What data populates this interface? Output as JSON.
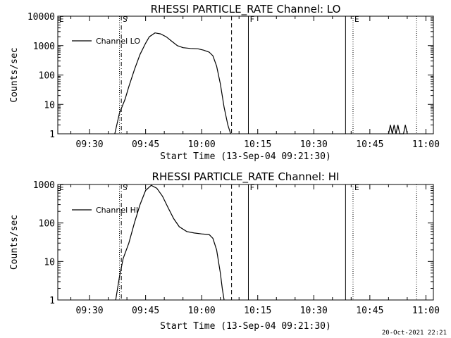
{
  "footer": {
    "timestamp": "20-Oct-2021 22:21"
  },
  "chart_data": [
    {
      "type": "line",
      "title": "RHESSI PARTICLE_RATE Channel: LO",
      "xlabel": "Start Time (13-Sep-04 09:21:30)",
      "ylabel": "Counts/sec",
      "y_scale": "log",
      "xlim": [
        "09:21:30",
        "11:02:00"
      ],
      "ylim": [
        1,
        10000
      ],
      "x_ticks": [
        "09:30",
        "09:45",
        "10:00",
        "10:15",
        "10:30",
        "10:45",
        "11:00"
      ],
      "y_ticks": [
        "1",
        "10",
        "100",
        "1000",
        "10000"
      ],
      "legend": {
        "position": "top-left",
        "entries": [
          "Channel LO"
        ]
      },
      "markers": [
        {
          "label": "E",
          "time": "09:21:30",
          "style": "dotted"
        },
        {
          "label": "",
          "time": "09:38:00",
          "style": "dotted"
        },
        {
          "label": "S",
          "time": "09:38:30",
          "style": "dashdot"
        },
        {
          "label": "",
          "time": "10:08:00",
          "style": "dashed"
        },
        {
          "label": "F",
          "time": "10:12:30",
          "style": "solid"
        },
        {
          "label": "",
          "time": "10:38:30",
          "style": "solid"
        },
        {
          "label": "E",
          "time": "10:40:30",
          "style": "dotted"
        },
        {
          "label": "",
          "time": "10:57:30",
          "style": "dotted"
        }
      ],
      "series": [
        {
          "name": "Channel LO",
          "segments": [
            [
              [
                "09:36:45",
                1
              ],
              [
                "09:38:00",
                5
              ],
              [
                "09:39:30",
                15
              ],
              [
                "09:40:30",
                40
              ],
              [
                "09:42:00",
                150
              ],
              [
                "09:43:30",
                500
              ],
              [
                "09:45:00",
                1200
              ],
              [
                "09:46:00",
                2000
              ],
              [
                "09:47:30",
                2700
              ],
              [
                "09:49:00",
                2500
              ],
              [
                "09:50:30",
                2000
              ],
              [
                "09:52:00",
                1400
              ],
              [
                "09:53:30",
                1000
              ],
              [
                "09:55:00",
                850
              ],
              [
                "09:57:00",
                800
              ],
              [
                "09:59:00",
                780
              ],
              [
                "10:00:30",
                700
              ],
              [
                "10:02:00",
                600
              ],
              [
                "10:03:00",
                450
              ],
              [
                "10:04:00",
                200
              ],
              [
                "10:05:00",
                50
              ],
              [
                "10:06:00",
                8
              ],
              [
                "10:07:00",
                2
              ],
              [
                "10:07:45",
                1
              ]
            ],
            [
              [
                "10:50:00",
                1
              ],
              [
                "10:50:30",
                2
              ],
              [
                "10:51:00",
                1
              ],
              [
                "10:51:30",
                2
              ],
              [
                "10:52:00",
                1
              ],
              [
                "10:52:30",
                2
              ],
              [
                "10:53:00",
                1
              ],
              [
                "10:54:00",
                1
              ],
              [
                "10:54:30",
                2
              ],
              [
                "10:55:00",
                1
              ]
            ]
          ]
        }
      ]
    },
    {
      "type": "line",
      "title": "RHESSI PARTICLE_RATE Channel: HI",
      "xlabel": "Start Time (13-Sep-04 09:21:30)",
      "ylabel": "Counts/sec",
      "y_scale": "log",
      "xlim": [
        "09:21:30",
        "11:02:00"
      ],
      "ylim": [
        1,
        1000
      ],
      "x_ticks": [
        "09:30",
        "09:45",
        "10:00",
        "10:15",
        "10:30",
        "10:45",
        "11:00"
      ],
      "y_ticks": [
        "1",
        "10",
        "100",
        "1000"
      ],
      "legend": {
        "position": "top-left",
        "entries": [
          "Channel HI"
        ]
      },
      "markers": [
        {
          "label": "E",
          "time": "09:21:30",
          "style": "dotted"
        },
        {
          "label": "",
          "time": "09:38:00",
          "style": "dotted"
        },
        {
          "label": "S",
          "time": "09:38:30",
          "style": "dashdot"
        },
        {
          "label": "",
          "time": "10:08:00",
          "style": "dashed"
        },
        {
          "label": "F",
          "time": "10:12:30",
          "style": "solid"
        },
        {
          "label": "",
          "time": "10:38:30",
          "style": "solid"
        },
        {
          "label": "E",
          "time": "10:40:30",
          "style": "dotted"
        },
        {
          "label": "",
          "time": "10:57:30",
          "style": "dotted"
        }
      ],
      "series": [
        {
          "name": "Channel HI",
          "segments": [
            [
              [
                "09:37:00",
                1
              ],
              [
                "09:38:00",
                4
              ],
              [
                "09:39:00",
                12
              ],
              [
                "09:40:30",
                30
              ],
              [
                "09:42:00",
                100
              ],
              [
                "09:43:30",
                300
              ],
              [
                "09:45:00",
                700
              ],
              [
                "09:46:30",
                950
              ],
              [
                "09:48:00",
                800
              ],
              [
                "09:49:30",
                500
              ],
              [
                "09:51:00",
                250
              ],
              [
                "09:52:30",
                130
              ],
              [
                "09:54:00",
                80
              ],
              [
                "09:56:00",
                60
              ],
              [
                "09:58:00",
                55
              ],
              [
                "10:00:00",
                52
              ],
              [
                "10:02:00",
                50
              ],
              [
                "10:03:00",
                40
              ],
              [
                "10:04:00",
                20
              ],
              [
                "10:05:00",
                5
              ],
              [
                "10:05:30",
                2
              ],
              [
                "10:06:00",
                1
              ]
            ]
          ]
        }
      ]
    }
  ]
}
